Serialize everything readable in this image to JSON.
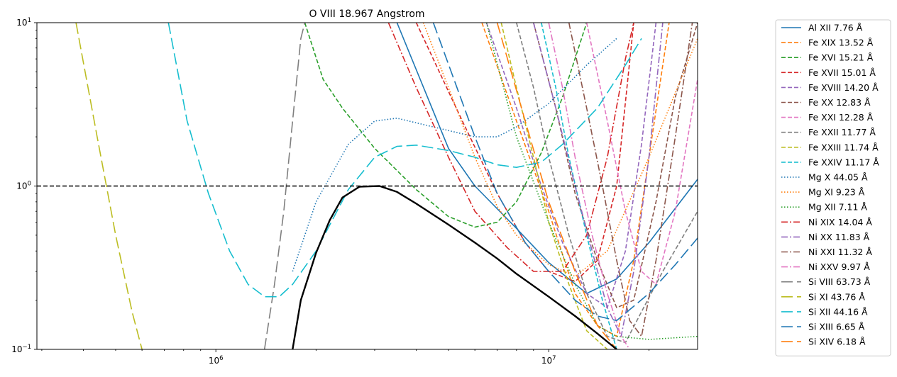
{
  "chart_data": {
    "type": "line",
    "title": "O VIII 18.967 Angstrom",
    "xlabel": "",
    "ylabel": "",
    "xscale": "log",
    "yscale": "log",
    "xlim": [
      290000,
      28000000
    ],
    "ylim": [
      0.1,
      10
    ],
    "x_ticks": [
      {
        "value": 1000000,
        "base": "10",
        "exp": "6"
      },
      {
        "value": 10000000,
        "base": "10",
        "exp": "7"
      }
    ],
    "y_ticks": [
      {
        "value": 0.1,
        "base": "10",
        "exp": "−1"
      },
      {
        "value": 1,
        "base": "10",
        "exp": "0"
      },
      {
        "value": 10,
        "base": "10",
        "exp": "1"
      }
    ],
    "grid": false,
    "legend_position": "outside-right",
    "reference_line": {
      "y": 1.0,
      "color": "#000000",
      "style": "dashed"
    },
    "envelope": {
      "color": "#000000",
      "points": [
        [
          1700000,
          0.1
        ],
        [
          1800000,
          0.2
        ],
        [
          2000000,
          0.39
        ],
        [
          2200000,
          0.62
        ],
        [
          2400000,
          0.85
        ],
        [
          2700000,
          0.99
        ],
        [
          3100000,
          1.0
        ],
        [
          3500000,
          0.92
        ],
        [
          4000000,
          0.78
        ],
        [
          5000000,
          0.58
        ],
        [
          6000000,
          0.45
        ],
        [
          7000000,
          0.36
        ],
        [
          8000000,
          0.29
        ],
        [
          10000000,
          0.21
        ],
        [
          12000000,
          0.16
        ],
        [
          14000000,
          0.125
        ],
        [
          16000000,
          0.1
        ]
      ]
    },
    "series": [
      {
        "name": "Al XII 7.76 Å",
        "color": "#1f77b4",
        "dash": "solid",
        "points": [
          [
            3500000,
            10
          ],
          [
            5000000,
            1.7
          ],
          [
            6000000,
            1.0
          ],
          [
            8000000,
            0.55
          ],
          [
            10000000,
            0.34
          ],
          [
            13000000,
            0.22
          ],
          [
            16000000,
            0.27
          ],
          [
            20000000,
            0.45
          ],
          [
            28000000,
            1.1
          ]
        ]
      },
      {
        "name": "Fe XIX 13.52 Å",
        "color": "#ff7f0e",
        "dash": "dashed",
        "points": [
          [
            6300000,
            10
          ],
          [
            8000000,
            2.5
          ],
          [
            10000000,
            0.7
          ],
          [
            12000000,
            0.22
          ],
          [
            14000000,
            0.14
          ],
          [
            16000000,
            0.12
          ],
          [
            18000000,
            0.35
          ],
          [
            20000000,
            1.5
          ],
          [
            23000000,
            10
          ]
        ]
      },
      {
        "name": "Fe XVI 15.21 Å",
        "color": "#2ca02c",
        "dash": "dashed",
        "points": [
          [
            1850000,
            10
          ],
          [
            2100000,
            4.5
          ],
          [
            2400000,
            3.0
          ],
          [
            3000000,
            1.7
          ],
          [
            4000000,
            0.95
          ],
          [
            5000000,
            0.65
          ],
          [
            6000000,
            0.56
          ],
          [
            7000000,
            0.6
          ],
          [
            8000000,
            0.8
          ],
          [
            9500000,
            1.6
          ],
          [
            11000000,
            3.5
          ],
          [
            13000000,
            10
          ]
        ]
      },
      {
        "name": "Fe XVII 15.01 Å",
        "color": "#d62728",
        "dash": "dashed",
        "points": [
          [
            4000000,
            10
          ],
          [
            5500000,
            2.5
          ],
          [
            7000000,
            0.9
          ],
          [
            8500000,
            0.45
          ],
          [
            10000000,
            0.3
          ],
          [
            12000000,
            0.26
          ],
          [
            14000000,
            0.35
          ],
          [
            16000000,
            1.0
          ],
          [
            18000000,
            10
          ]
        ]
      },
      {
        "name": "Fe XVIII 14.20 Å",
        "color": "#9467bd",
        "dash": "dashed",
        "points": [
          [
            6500000,
            10
          ],
          [
            8000000,
            3.0
          ],
          [
            9500000,
            1.0
          ],
          [
            11000000,
            0.45
          ],
          [
            13000000,
            0.22
          ],
          [
            15000000,
            0.18
          ],
          [
            17000000,
            0.4
          ],
          [
            19000000,
            1.8
          ],
          [
            21000000,
            10
          ]
        ]
      },
      {
        "name": "Fe XX 12.83 Å",
        "color": "#8c564b",
        "dash": "dashed",
        "points": [
          [
            9000000,
            10
          ],
          [
            10500000,
            3.0
          ],
          [
            12000000,
            0.9
          ],
          [
            14000000,
            0.35
          ],
          [
            16000000,
            0.18
          ],
          [
            18000000,
            0.2
          ],
          [
            21000000,
            0.8
          ],
          [
            24000000,
            3.5
          ],
          [
            28000000,
            10
          ]
        ]
      },
      {
        "name": "Fe XXI 12.28 Å",
        "color": "#e377c2",
        "dash": "dashed",
        "points": [
          [
            13000000,
            10
          ],
          [
            15000000,
            2.5
          ],
          [
            17000000,
            0.7
          ],
          [
            19000000,
            0.3
          ],
          [
            21000000,
            0.25
          ],
          [
            24000000,
            0.7
          ],
          [
            28000000,
            4.5
          ]
        ]
      },
      {
        "name": "Fe XXII 11.77 Å",
        "color": "#7f7f7f",
        "dash": "dashed",
        "points": [
          [
            8000000,
            10
          ],
          [
            9000000,
            4.0
          ],
          [
            10000000,
            1.5
          ],
          [
            11500000,
            0.5
          ],
          [
            13000000,
            0.22
          ],
          [
            15000000,
            0.12
          ],
          [
            17000000,
            0.11
          ],
          [
            19000000,
            0.17
          ],
          [
            22000000,
            0.3
          ],
          [
            28000000,
            0.7
          ]
        ]
      },
      {
        "name": "Fe XXIII 11.74 Å",
        "color": "#bcbd22",
        "dash": "dashed",
        "points": [
          [
            7200000,
            10
          ],
          [
            8000000,
            4.0
          ],
          [
            9000000,
            1.5
          ],
          [
            10000000,
            0.6
          ],
          [
            11500000,
            0.25
          ],
          [
            13000000,
            0.13
          ],
          [
            15000000,
            0.1
          ]
        ]
      },
      {
        "name": "Fe XXIV 11.17 Å",
        "color": "#17becf",
        "dash": "dashed",
        "points": [
          [
            9500000,
            10
          ],
          [
            10500000,
            4.0
          ],
          [
            11500000,
            1.5
          ],
          [
            13000000,
            0.5
          ],
          [
            14500000,
            0.2
          ],
          [
            16000000,
            0.1
          ]
        ]
      },
      {
        "name": "Mg X 44.05 Å",
        "color": "#1f77b4",
        "dash": "dotted",
        "points": [
          [
            1700000,
            0.3
          ],
          [
            2000000,
            0.8
          ],
          [
            2500000,
            1.8
          ],
          [
            3000000,
            2.5
          ],
          [
            3500000,
            2.6
          ],
          [
            4500000,
            2.3
          ],
          [
            6000000,
            2.0
          ],
          [
            7000000,
            2.0
          ],
          [
            8000000,
            2.3
          ],
          [
            10000000,
            3.2
          ],
          [
            13000000,
            5.5
          ],
          [
            16000000,
            8.0
          ]
        ]
      },
      {
        "name": "Mg XI 9.23 Å",
        "color": "#ff7f0e",
        "dash": "dotted",
        "points": [
          [
            4200000,
            10
          ],
          [
            5000000,
            4.0
          ],
          [
            6000000,
            1.5
          ],
          [
            7000000,
            0.75
          ],
          [
            8000000,
            0.5
          ],
          [
            10000000,
            0.33
          ],
          [
            12000000,
            0.28
          ],
          [
            15000000,
            0.4
          ],
          [
            20000000,
            1.5
          ],
          [
            28000000,
            8.0
          ]
        ]
      },
      {
        "name": "Mg XII 7.11 Å",
        "color": "#2ca02c",
        "dash": "dotted",
        "points": [
          [
            6500000,
            10
          ],
          [
            8000000,
            2.0
          ],
          [
            10000000,
            0.6
          ],
          [
            12000000,
            0.25
          ],
          [
            14000000,
            0.14
          ],
          [
            16000000,
            0.12
          ],
          [
            20000000,
            0.115
          ],
          [
            28000000,
            0.12
          ]
        ]
      },
      {
        "name": "Ni XIX 14.04 Å",
        "color": "#d62728",
        "dash": "dashdot",
        "points": [
          [
            3300000,
            10
          ],
          [
            4000000,
            4.0
          ],
          [
            5000000,
            1.5
          ],
          [
            6000000,
            0.7
          ],
          [
            7500000,
            0.42
          ],
          [
            9000000,
            0.3
          ],
          [
            11000000,
            0.3
          ],
          [
            13000000,
            0.5
          ],
          [
            15000000,
            1.5
          ],
          [
            17000000,
            6.0
          ],
          [
            18000000,
            10
          ]
        ]
      },
      {
        "name": "Ni XX 11.83 Å",
        "color": "#9467bd",
        "dash": "dashdot",
        "points": [
          [
            9000000,
            10
          ],
          [
            10500000,
            3.0
          ],
          [
            12000000,
            1.0
          ],
          [
            13500000,
            0.4
          ],
          [
            15000000,
            0.18
          ],
          [
            16500000,
            0.12
          ],
          [
            18000000,
            0.3
          ],
          [
            20000000,
            1.5
          ],
          [
            22000000,
            10
          ]
        ]
      },
      {
        "name": "Ni XXI 11.32 Å",
        "color": "#8c564b",
        "dash": "dashdot",
        "points": [
          [
            11500000,
            10
          ],
          [
            13000000,
            3.0
          ],
          [
            14500000,
            1.0
          ],
          [
            16000000,
            0.35
          ],
          [
            17500000,
            0.15
          ],
          [
            19000000,
            0.12
          ],
          [
            21000000,
            0.35
          ],
          [
            24000000,
            2.0
          ],
          [
            27000000,
            10
          ]
        ]
      },
      {
        "name": "Ni XXV 9.97 Å",
        "color": "#e377c2",
        "dash": "dashdot",
        "points": [
          [
            10000000,
            10
          ],
          [
            11000000,
            4.0
          ],
          [
            12000000,
            1.5
          ],
          [
            13500000,
            0.5
          ],
          [
            15000000,
            0.22
          ],
          [
            16500000,
            0.12
          ],
          [
            17500000,
            0.1
          ]
        ]
      },
      {
        "name": "Si VIII 63.73 Å",
        "color": "#7f7f7f",
        "dash": "longdash",
        "points": [
          [
            1400000,
            0.1
          ],
          [
            1500000,
            0.25
          ],
          [
            1600000,
            0.7
          ],
          [
            1700000,
            2.5
          ],
          [
            1800000,
            8.0
          ],
          [
            1850000,
            10
          ]
        ]
      },
      {
        "name": "Si XI 43.76 Å",
        "color": "#bcbd22",
        "dash": "longdash",
        "points": [
          [
            380000,
            10
          ],
          [
            440000,
            2.0
          ],
          [
            500000,
            0.5
          ],
          [
            560000,
            0.17
          ],
          [
            600000,
            0.1
          ]
        ]
      },
      {
        "name": "Si XII 44.16 Å",
        "color": "#17becf",
        "dash": "longdash",
        "points": [
          [
            720000,
            10
          ],
          [
            820000,
            2.5
          ],
          [
            950000,
            0.9
          ],
          [
            1100000,
            0.4
          ],
          [
            1250000,
            0.25
          ],
          [
            1400000,
            0.21
          ],
          [
            1550000,
            0.21
          ],
          [
            1700000,
            0.25
          ],
          [
            2000000,
            0.4
          ],
          [
            2500000,
            0.95
          ],
          [
            3000000,
            1.5
          ],
          [
            3500000,
            1.75
          ],
          [
            4000000,
            1.78
          ],
          [
            5000000,
            1.65
          ],
          [
            6000000,
            1.5
          ],
          [
            7000000,
            1.35
          ],
          [
            8000000,
            1.3
          ],
          [
            9500000,
            1.4
          ],
          [
            11000000,
            1.8
          ],
          [
            14000000,
            3.0
          ],
          [
            17000000,
            5.5
          ],
          [
            19000000,
            8.0
          ]
        ]
      },
      {
        "name": "Si XIII 6.65 Å",
        "color": "#1f77b4",
        "dash": "longdash",
        "points": [
          [
            4500000,
            10
          ],
          [
            6000000,
            2.0
          ],
          [
            7000000,
            0.9
          ],
          [
            8500000,
            0.45
          ],
          [
            10000000,
            0.3
          ],
          [
            12000000,
            0.2
          ],
          [
            14000000,
            0.16
          ],
          [
            16000000,
            0.15
          ],
          [
            20000000,
            0.22
          ],
          [
            24000000,
            0.33
          ],
          [
            28000000,
            0.48
          ]
        ]
      },
      {
        "name": "Si XIV 6.18 Å",
        "color": "#ff7f0e",
        "dash": "longdash",
        "points": [
          [
            7000000,
            10
          ],
          [
            8500000,
            2.5
          ],
          [
            10000000,
            0.8
          ],
          [
            12000000,
            0.3
          ],
          [
            14000000,
            0.14
          ],
          [
            16000000,
            0.1
          ]
        ]
      }
    ]
  }
}
